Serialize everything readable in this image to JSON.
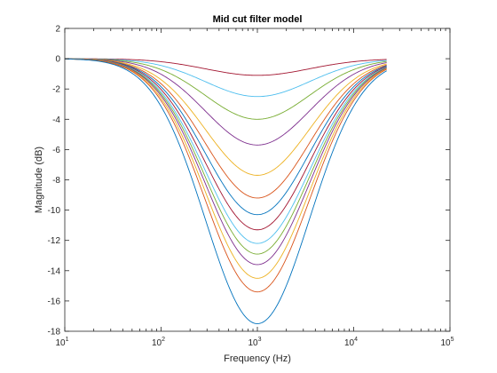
{
  "chart_data": {
    "type": "line",
    "title": "Mid cut filter model",
    "xlabel": "Frequency (Hz)",
    "ylabel": "Magnitude (dB)",
    "x_scale": "log",
    "xlim": [
      10,
      100000
    ],
    "ylim": [
      -18,
      2
    ],
    "x_ticks": [
      {
        "value": 10,
        "base": "10",
        "exp": "1"
      },
      {
        "value": 100,
        "base": "10",
        "exp": "2"
      },
      {
        "value": 1000,
        "base": "10",
        "exp": "3"
      },
      {
        "value": 10000,
        "base": "10",
        "exp": "4"
      },
      {
        "value": 100000,
        "base": "10",
        "exp": "5"
      }
    ],
    "y_ticks": [
      2,
      0,
      -2,
      -4,
      -6,
      -8,
      -10,
      -12,
      -14,
      -16,
      -18
    ],
    "grid": false,
    "box": true,
    "center_frequency": 1000,
    "shape_width_decades": 0.54,
    "x_start": 10,
    "x_end": 22000,
    "series": [
      {
        "min_db": -1.1,
        "color": "#A2142F"
      },
      {
        "min_db": -2.5,
        "color": "#4DBEEE"
      },
      {
        "min_db": -4.0,
        "color": "#77AC30"
      },
      {
        "min_db": -5.7,
        "color": "#7E2F8E"
      },
      {
        "min_db": -7.7,
        "color": "#EDB120"
      },
      {
        "min_db": -9.2,
        "color": "#D95319"
      },
      {
        "min_db": -10.3,
        "color": "#0072BD"
      },
      {
        "min_db": -11.3,
        "color": "#A2142F"
      },
      {
        "min_db": -12.2,
        "color": "#4DBEEE"
      },
      {
        "min_db": -12.9,
        "color": "#77AC30"
      },
      {
        "min_db": -13.6,
        "color": "#7E2F8E"
      },
      {
        "min_db": -14.5,
        "color": "#EDB120"
      },
      {
        "min_db": -15.4,
        "color": "#D95319"
      },
      {
        "min_db": -17.5,
        "color": "#0072BD"
      }
    ]
  }
}
